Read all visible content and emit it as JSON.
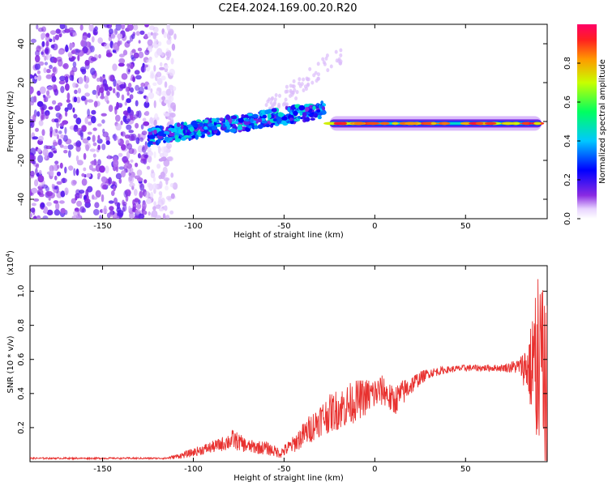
{
  "figure": {
    "title": "C2E4.2024.169.00.20.R20"
  },
  "chart_data": [
    {
      "type": "heatmap",
      "title": "C2E4.2024.169.00.20.R20",
      "xlabel": "Height of straight line (km)",
      "ylabel": "Frequency (Hz)",
      "xlim": [
        -190,
        95
      ],
      "ylim": [
        -50,
        50
      ],
      "x_ticks": [
        -150,
        -100,
        -50,
        0,
        50
      ],
      "y_ticks": [
        -40,
        -20,
        0,
        20,
        40
      ],
      "colorbar": {
        "label": "Normalized spectral amplitude",
        "range": [
          0.0,
          1.0
        ],
        "ticks": [
          0.0,
          0.2,
          0.4,
          0.6,
          0.8
        ],
        "colormap": "rainbow"
      },
      "features": [
        {
          "name": "broadband noise",
          "x_range": [
            -190,
            -110
          ],
          "y_range": [
            -50,
            50
          ],
          "amplitude": "0.1-0.3"
        },
        {
          "name": "rising ridge",
          "x_start": -125,
          "x_end": -28,
          "y_start": -8,
          "y_end": 6,
          "amplitude": "0.3-0.5"
        },
        {
          "name": "steady line",
          "x_start": -25,
          "x_end": 92,
          "y": -1,
          "amplitude": "0.5-1.0"
        },
        {
          "name": "faint upper branch",
          "x_start": -60,
          "x_end": -18,
          "y_start": 5,
          "y_end": 35,
          "amplitude": "0.1"
        }
      ]
    },
    {
      "type": "line",
      "xlabel": "Height of straight line (km)",
      "ylabel": "SNR (10 * v/v)",
      "y_multiplier": "(x10",
      "y_multiplier_exponent": "4",
      "xlim": [
        -190,
        95
      ],
      "ylim": [
        0.0,
        1.15
      ],
      "x_ticks": [
        -150,
        -100,
        -50,
        0,
        50
      ],
      "y_ticks": [
        0.2,
        0.4,
        0.6,
        0.8,
        1.0
      ],
      "color": "#e8312f",
      "x": [
        -190,
        -170,
        -150,
        -130,
        -115,
        -105,
        -95,
        -85,
        -78,
        -70,
        -60,
        -52,
        -45,
        -38,
        -30,
        -22,
        -15,
        -10,
        -5,
        0,
        5,
        10,
        15,
        20,
        25,
        30,
        40,
        50,
        60,
        70,
        80,
        85,
        88,
        90,
        92,
        94
      ],
      "y": [
        0.02,
        0.02,
        0.02,
        0.02,
        0.02,
        0.04,
        0.07,
        0.1,
        0.13,
        0.09,
        0.08,
        0.05,
        0.1,
        0.17,
        0.25,
        0.3,
        0.33,
        0.36,
        0.38,
        0.4,
        0.42,
        0.35,
        0.4,
        0.45,
        0.49,
        0.52,
        0.54,
        0.55,
        0.55,
        0.55,
        0.56,
        0.55,
        0.55,
        0.5,
        0.5,
        0.45
      ],
      "noise_amplitude": [
        0.005,
        0.005,
        0.005,
        0.005,
        0.005,
        0.02,
        0.03,
        0.04,
        0.06,
        0.04,
        0.04,
        0.03,
        0.05,
        0.08,
        0.1,
        0.12,
        0.13,
        0.12,
        0.11,
        0.1,
        0.09,
        0.09,
        0.08,
        0.06,
        0.04,
        0.03,
        0.02,
        0.02,
        0.02,
        0.02,
        0.05,
        0.2,
        0.4,
        0.5,
        0.5,
        0.5
      ]
    }
  ]
}
